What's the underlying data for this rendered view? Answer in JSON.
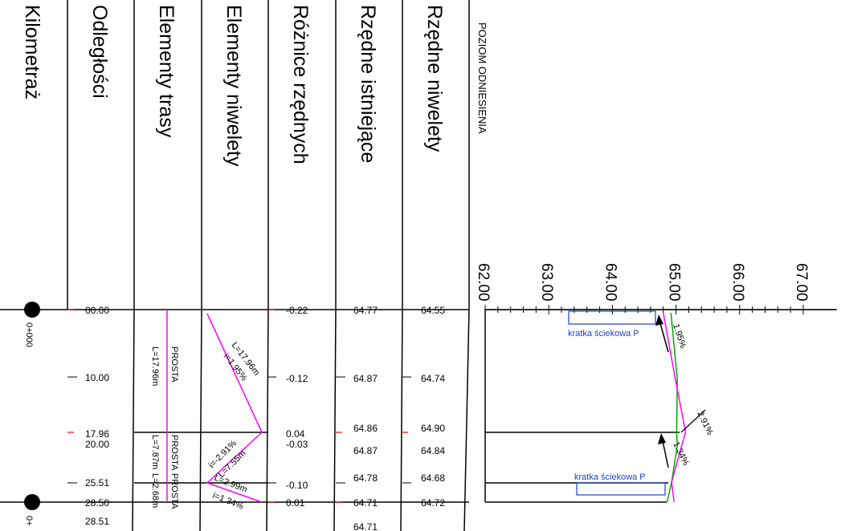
{
  "headers": {
    "kilometraz": "Kilometraż",
    "odleglosci": "Odległości",
    "elementy_trasy": "Elementy trasy",
    "elementy_niwelety": "Elementy niwelety",
    "roznice_rzednych": "Różnice rzędnych",
    "rzedne_istniejace": "Rzędne istniejące",
    "rzedne_niwelety": "Rzędne niwelety",
    "poziom_odniesienia": "POZIOM ODNIESIENIA"
  },
  "scale": {
    "ticks": [
      "62.00",
      "63.00",
      "64.00",
      "65.00",
      "66.00",
      "67.00"
    ],
    "min": 62.0,
    "max": 67.0
  },
  "chainage": [
    "0+000",
    "0+"
  ],
  "rows": [
    {
      "distance": "00.00",
      "diff": "-0.22",
      "existing": "64.77",
      "design": "64.55",
      "distance_value": 0.0,
      "existing_value": 64.77,
      "design_value": 64.55
    },
    {
      "distance": "10.00",
      "diff": "-0.12",
      "existing": "64.87",
      "design": "64.74",
      "distance_value": 10.0,
      "existing_value": 64.87,
      "design_value": 64.74
    },
    {
      "distance": "17.96",
      "diff": "0.04",
      "existing": "64.86",
      "design": "64.90",
      "distance_value": 17.96,
      "existing_value": 64.86,
      "design_value": 64.9
    },
    {
      "distance": "20.00",
      "diff": "-0.03",
      "existing": "64.87",
      "design": "64.84",
      "distance_value": 20.0,
      "existing_value": 64.87,
      "design_value": 64.84
    },
    {
      "distance": "25.51",
      "diff": "-0.10",
      "existing": "64.78",
      "design": "64.68",
      "distance_value": 25.51,
      "existing_value": 64.78,
      "design_value": 64.68
    },
    {
      "distance": "28.50",
      "diff": "0.01",
      "existing": "64.71",
      "design": "64.72",
      "distance_value": 28.5,
      "existing_value": 64.71,
      "design_value": 64.72
    },
    {
      "distance": "28.51",
      "diff": "",
      "existing": "64.71",
      "design": "",
      "distance_value": 28.51,
      "existing_value": 64.71,
      "design_value": null
    }
  ],
  "route_elements": [
    {
      "type": "PROSTA",
      "length": "L=17.96m"
    },
    {
      "type": "PROSTA",
      "length": "L=7.87m"
    },
    {
      "type": "PROSTA",
      "length": "L=2.68m"
    }
  ],
  "grade_elements": [
    {
      "length": "L=17.96m",
      "slope": "i=1.95%"
    },
    {
      "length": "L=7.55m",
      "slope": "i=-2.91%"
    },
    {
      "length": "L=2.99m",
      "slope": "i=1.34%"
    }
  ],
  "annotations": {
    "grate_1": "kratka ściekowa P",
    "grate_2": "kratka ściekowa P",
    "slope_1": "1.95%",
    "slope_2": "2.91%",
    "slope_3": "1.34%"
  },
  "colors": {
    "design_line": "#ff00ff",
    "terrain_line": "#00aa00",
    "grate": "#1a3fd0",
    "tick_red": "#ff0000"
  }
}
